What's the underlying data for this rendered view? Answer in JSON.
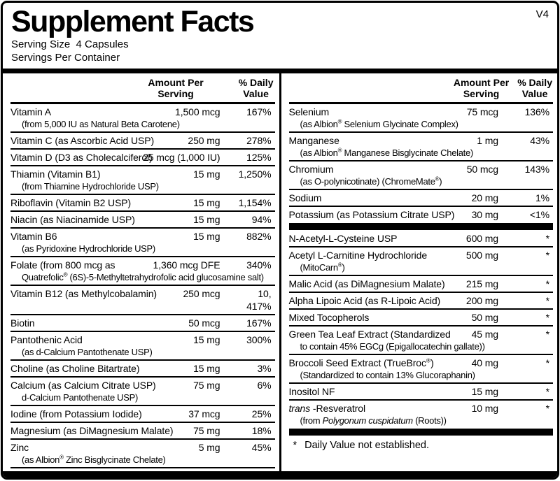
{
  "version_label": "V4",
  "colors": {
    "ink": "#000000",
    "paper": "#ffffff"
  },
  "header": {
    "title": "Supplement Facts",
    "serving_size": "Serving Size  4 Capsules",
    "servings_per_container": "Servings Per Container"
  },
  "column_headers": {
    "amount_line1": "Amount Per",
    "amount_line2": "Serving",
    "dv_line1": "% Daily",
    "dv_line2": "Value"
  },
  "left_column_rows": [
    {
      "name": "Vitamin A",
      "sub": "(from 5,000 IU as Natural Beta Carotene)",
      "amount": "1,500 mcg",
      "dv": "167%"
    },
    {
      "name": "Vitamin C (as Ascorbic Acid USP)",
      "amount": "250 mg",
      "dv": "278%"
    },
    {
      "name": "Vitamin D (D3 as Cholecalciferol)",
      "amount": "25 mcg (1,000 IU)",
      "dv": "125%"
    },
    {
      "name": "Thiamin (Vitamin B1)",
      "sub": "(from Thiamine Hydrochloride USP)",
      "amount": "15 mg",
      "dv": "1,250%"
    },
    {
      "name": "Riboflavin (Vitamin B2 USP)",
      "amount": "15 mg",
      "dv": "1,154%"
    },
    {
      "name": "Niacin (as Niacinamide USP)",
      "amount": "15 mg",
      "dv": "94%"
    },
    {
      "name": "Vitamin B6",
      "sub": "(as Pyridoxine Hydrochloride USP)",
      "amount": "15 mg",
      "dv": "882%"
    },
    {
      "name": "Folate (from 800 mcg as",
      "sub": "Quatrefolic® (6S)-5-Methyltetrahydrofolic acid glucosamine salt)",
      "amount": "1,360 mcg DFE",
      "dv": "340%"
    },
    {
      "name": "Vitamin B12 (as Methylcobalamin)",
      "amount": "250 mcg",
      "dv": "10, 417%"
    },
    {
      "name": "Biotin",
      "amount": "50 mcg",
      "dv": "167%"
    },
    {
      "name": "Pantothenic Acid",
      "sub": "(as d-Calcium Pantothenate USP)",
      "amount": "15 mg",
      "dv": "300%"
    },
    {
      "name": "Choline (as Choline Bitartrate)",
      "amount": "15 mg",
      "dv": "3%"
    },
    {
      "name": "Calcium (as Calcium Citrate USP)",
      "sub": "d-Calcium Pantothenate USP)",
      "amount": "75 mg",
      "dv": "6%"
    },
    {
      "name": "Iodine (from Potassium Iodide)",
      "amount": "37 mcg",
      "dv": "25%"
    },
    {
      "name": "Magnesium (as DiMagnesium Malate)",
      "amount": "75 mg",
      "dv": "18%"
    },
    {
      "name": "Zinc",
      "sub": "(as Albion® Zinc Bisglycinate Chelate)",
      "amount": "5 mg",
      "dv": "45%"
    }
  ],
  "right_column_rows": [
    {
      "name": "Selenium",
      "sub": "(as Albion® Selenium Glycinate Complex)",
      "amount": "75 mcg",
      "dv": "136%"
    },
    {
      "name": "Manganese",
      "sub": "(as Albion® Manganese Bisglycinate Chelate)",
      "amount": "1 mg",
      "dv": "43%"
    },
    {
      "name": "Chromium",
      "sub": "(as O-polynicotinate) (ChromeMate®)",
      "amount": "50 mcg",
      "dv": "143%"
    },
    {
      "name": "Sodium",
      "amount": "20 mg",
      "dv": "1%"
    },
    {
      "name": "Potassium (as Potassium Citrate USP)",
      "amount": "30 mg",
      "dv": "<1%"
    },
    {
      "type": "divider"
    },
    {
      "name": "N-Acetyl-L-Cysteine USP",
      "amount": "600 mg",
      "dv": "*"
    },
    {
      "name": "Acetyl L-Carnitine Hydrochloride",
      "sub": "(MitoCarn®)",
      "amount": "500 mg",
      "dv": "*"
    },
    {
      "name": "Malic Acid (as DiMagnesium Malate)",
      "amount": "215 mg",
      "dv": "*"
    },
    {
      "name": "Alpha Lipoic Acid (as R-Lipoic Acid)",
      "amount": "200 mg",
      "dv": "*"
    },
    {
      "name": "Mixed Tocopherols",
      "amount": "50 mg",
      "dv": "*"
    },
    {
      "name": "Green Tea Leaf Extract (Standardized",
      "sub": "to contain 45% EGCg (Epigallocatechin gallate))",
      "amount": "45 mg",
      "dv": "*"
    },
    {
      "name": "Broccoli Seed Extract (TrueBroc®)",
      "sub": "(Standardized to contain 13% Glucoraphanin)",
      "amount": "40 mg",
      "dv": "*"
    },
    {
      "name": "Inositol NF",
      "amount": "15 mg",
      "dv": "*"
    },
    {
      "name_parts": [
        {
          "text": "trans",
          "italic": true
        },
        {
          "text": " -Resveratrol",
          "italic": false
        }
      ],
      "sub_parts": [
        {
          "text": "(from ",
          "italic": false
        },
        {
          "text": "Polygonum cuspidatum",
          "italic": true
        },
        {
          "text": " (Roots))",
          "italic": false
        }
      ],
      "amount": "10 mg",
      "dv": "*"
    }
  ],
  "footnote": {
    "star": "*",
    "text": "Daily Value not established."
  }
}
